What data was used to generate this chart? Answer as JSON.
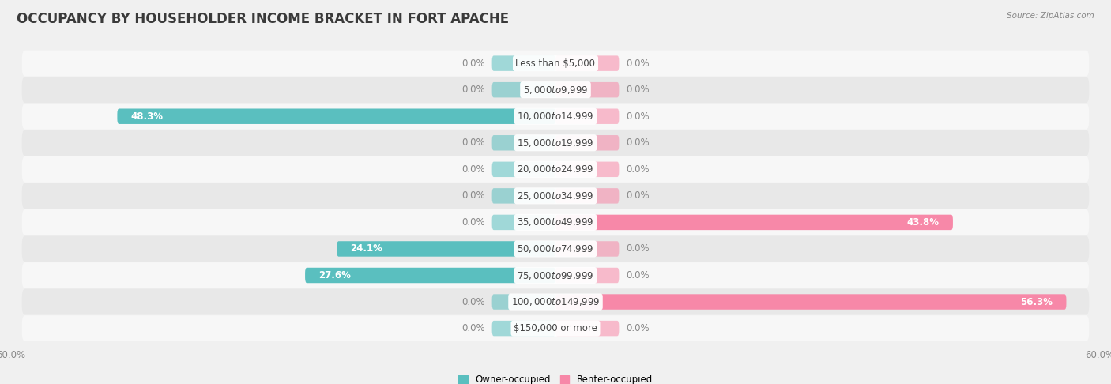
{
  "title": "OCCUPANCY BY HOUSEHOLDER INCOME BRACKET IN FORT APACHE",
  "source": "Source: ZipAtlas.com",
  "categories": [
    "Less than $5,000",
    "$5,000 to $9,999",
    "$10,000 to $14,999",
    "$15,000 to $19,999",
    "$20,000 to $24,999",
    "$25,000 to $34,999",
    "$35,000 to $49,999",
    "$50,000 to $74,999",
    "$75,000 to $99,999",
    "$100,000 to $149,999",
    "$150,000 or more"
  ],
  "owner_values": [
    0.0,
    0.0,
    48.3,
    0.0,
    0.0,
    0.0,
    0.0,
    24.1,
    27.6,
    0.0,
    0.0
  ],
  "renter_values": [
    0.0,
    0.0,
    0.0,
    0.0,
    0.0,
    0.0,
    43.8,
    0.0,
    0.0,
    56.3,
    0.0
  ],
  "owner_color": "#5abfbf",
  "renter_color": "#f788a8",
  "owner_label": "Owner-occupied",
  "renter_label": "Renter-occupied",
  "xlim": 60.0,
  "stub_size": 7.0,
  "bar_height": 0.58,
  "background_color": "#f0f0f0",
  "row_bg_odd": "#f7f7f7",
  "row_bg_even": "#e8e8e8",
  "title_fontsize": 12,
  "value_fontsize": 8.5,
  "category_fontsize": 8.5,
  "axis_label_fontsize": 8.5
}
